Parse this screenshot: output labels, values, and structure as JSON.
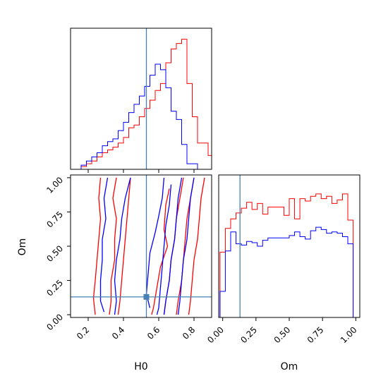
{
  "chart_data": {
    "type": "corner",
    "parameters": [
      "H0",
      "Om"
    ],
    "truth": {
      "H0": 0.53,
      "Om": 0.13
    },
    "truth_color": "#4682b4",
    "series": [
      {
        "color": "#ff0000"
      },
      {
        "color": "#0000ff"
      }
    ],
    "panels": [
      {
        "id": "hist-H0",
        "type": "histogram",
        "xlim": [
          0.1,
          0.9
        ],
        "ylim": [
          0,
          1.02
        ],
        "show_y_ticks": false,
        "bin_edges": [
          0.1,
          0.13,
          0.16,
          0.19,
          0.22,
          0.25,
          0.28,
          0.31,
          0.34,
          0.37,
          0.4,
          0.43,
          0.46,
          0.49,
          0.52,
          0.55,
          0.58,
          0.61,
          0.64,
          0.67,
          0.7,
          0.73,
          0.76,
          0.79,
          0.82,
          0.85,
          0.88,
          0.9
        ],
        "series_values": [
          [
            0.0,
            0.0,
            0.02,
            0.04,
            0.06,
            0.09,
            0.12,
            0.14,
            0.16,
            0.19,
            0.23,
            0.3,
            0.32,
            0.38,
            0.44,
            0.5,
            0.57,
            0.62,
            0.77,
            0.87,
            0.91,
            0.94,
            0.62,
            0.38,
            0.19,
            0.19,
            0.1
          ],
          [
            0.0,
            0.0,
            0.03,
            0.06,
            0.09,
            0.12,
            0.17,
            0.2,
            0.22,
            0.28,
            0.34,
            0.41,
            0.47,
            0.53,
            0.6,
            0.68,
            0.76,
            0.72,
            0.59,
            0.42,
            0.36,
            0.18,
            0.04,
            0.04,
            0.0,
            0.0,
            0.0
          ]
        ]
      },
      {
        "id": "contour-H0-Om",
        "type": "contour",
        "xlim": [
          0.1,
          0.9
        ],
        "ylim": [
          -0.02,
          1.02
        ],
        "x_ticks": [
          "0.2",
          "0.4",
          "0.6",
          "0.8"
        ],
        "x_tick_values": [
          0.2,
          0.4,
          0.6,
          0.8
        ],
        "y_ticks": [
          "0.00",
          "0.25",
          "0.50",
          "0.75",
          "1.00"
        ],
        "y_tick_values": [
          0.0,
          0.25,
          0.5,
          0.75,
          1.0
        ],
        "xlabel": "H0",
        "ylabel": "Om",
        "contours": [
          {
            "series": 0,
            "points": [
              [
                0.27,
                1.0
              ],
              [
                0.26,
                0.85
              ],
              [
                0.27,
                0.7
              ],
              [
                0.26,
                0.55
              ],
              [
                0.25,
                0.4
              ],
              [
                0.24,
                0.25
              ],
              [
                0.23,
                0.12
              ],
              [
                0.24,
                0.0
              ]
            ]
          },
          {
            "series": 0,
            "points": [
              [
                0.36,
                1.0
              ],
              [
                0.34,
                0.85
              ],
              [
                0.36,
                0.7
              ],
              [
                0.35,
                0.55
              ],
              [
                0.35,
                0.4
              ],
              [
                0.33,
                0.25
              ],
              [
                0.33,
                0.1
              ],
              [
                0.32,
                0.0
              ]
            ]
          },
          {
            "series": 0,
            "points": [
              [
                0.44,
                1.0
              ],
              [
                0.43,
                0.85
              ],
              [
                0.42,
                0.7
              ],
              [
                0.41,
                0.55
              ],
              [
                0.4,
                0.4
              ],
              [
                0.39,
                0.25
              ],
              [
                0.38,
                0.1
              ],
              [
                0.37,
                0.0
              ]
            ]
          },
          {
            "series": 0,
            "points": [
              [
                0.66,
                0.92
              ],
              [
                0.64,
                0.8
              ],
              [
                0.63,
                0.62
              ],
              [
                0.65,
                0.5
              ],
              [
                0.61,
                0.35
              ],
              [
                0.59,
                0.2
              ],
              [
                0.57,
                0.05
              ],
              [
                0.56,
                0.0
              ]
            ]
          },
          {
            "series": 0,
            "points": [
              [
                0.74,
                1.0
              ],
              [
                0.72,
                0.85
              ],
              [
                0.7,
                0.7
              ],
              [
                0.69,
                0.55
              ],
              [
                0.67,
                0.4
              ],
              [
                0.66,
                0.25
              ],
              [
                0.64,
                0.1
              ],
              [
                0.63,
                0.0
              ]
            ]
          },
          {
            "series": 0,
            "points": [
              [
                0.8,
                1.0
              ],
              [
                0.78,
                0.85
              ],
              [
                0.76,
                0.7
              ],
              [
                0.75,
                0.55
              ],
              [
                0.74,
                0.4
              ],
              [
                0.73,
                0.25
              ],
              [
                0.71,
                0.1
              ],
              [
                0.7,
                0.0
              ]
            ]
          },
          {
            "series": 0,
            "points": [
              [
                0.86,
                1.0
              ],
              [
                0.84,
                0.85
              ],
              [
                0.83,
                0.7
              ],
              [
                0.82,
                0.55
              ],
              [
                0.8,
                0.4
              ],
              [
                0.79,
                0.25
              ],
              [
                0.78,
                0.1
              ],
              [
                0.77,
                0.0
              ]
            ]
          },
          {
            "series": 1,
            "points": [
              [
                0.31,
                1.0
              ],
              [
                0.29,
                0.85
              ],
              [
                0.3,
                0.7
              ],
              [
                0.28,
                0.55
              ],
              [
                0.28,
                0.4
              ],
              [
                0.27,
                0.25
              ],
              [
                0.27,
                0.1
              ],
              [
                0.29,
                0.02
              ]
            ]
          },
          {
            "series": 1,
            "points": [
              [
                0.44,
                1.0
              ],
              [
                0.41,
                0.85
              ],
              [
                0.39,
                0.7
              ],
              [
                0.38,
                0.55
              ],
              [
                0.36,
                0.4
              ],
              [
                0.35,
                0.25
              ],
              [
                0.36,
                0.1
              ],
              [
                0.35,
                0.0
              ]
            ]
          },
          {
            "series": 1,
            "points": [
              [
                0.63,
                1.0
              ],
              [
                0.62,
                0.85
              ],
              [
                0.6,
                0.72
              ],
              [
                0.58,
                0.6
              ],
              [
                0.55,
                0.45
              ],
              [
                0.54,
                0.3
              ],
              [
                0.53,
                0.15
              ],
              [
                0.55,
                0.05
              ]
            ]
          },
          {
            "series": 1,
            "points": [
              [
                0.67,
                0.95
              ],
              [
                0.66,
                0.8
              ],
              [
                0.64,
                0.65
              ],
              [
                0.63,
                0.5
              ],
              [
                0.62,
                0.35
              ],
              [
                0.61,
                0.2
              ],
              [
                0.6,
                0.05
              ],
              [
                0.59,
                0.0
              ]
            ]
          },
          {
            "series": 1,
            "points": [
              [
                0.73,
                1.0
              ],
              [
                0.71,
                0.85
              ],
              [
                0.7,
                0.7
              ],
              [
                0.69,
                0.55
              ],
              [
                0.67,
                0.4
              ],
              [
                0.66,
                0.25
              ],
              [
                0.64,
                0.1
              ],
              [
                0.63,
                0.0
              ]
            ]
          },
          {
            "series": 1,
            "points": [
              [
                0.8,
                1.0
              ],
              [
                0.78,
                0.85
              ],
              [
                0.77,
                0.7
              ],
              [
                0.76,
                0.55
              ],
              [
                0.74,
                0.4
              ],
              [
                0.73,
                0.25
              ],
              [
                0.72,
                0.1
              ],
              [
                0.71,
                0.0
              ]
            ]
          }
        ],
        "truth_marker": true
      },
      {
        "id": "hist-Om",
        "type": "histogram",
        "xlim": [
          -0.03,
          1.03
        ],
        "ylim": [
          0,
          1.2
        ],
        "show_y_ticks": false,
        "x_ticks": [
          "0.00",
          "0.25",
          "0.50",
          "0.75",
          "1.00"
        ],
        "x_tick_values": [
          0.0,
          0.25,
          0.5,
          0.75,
          1.0
        ],
        "xlabel": "Om",
        "bin_edges": [
          -0.02,
          0.02,
          0.06,
          0.1,
          0.14,
          0.18,
          0.22,
          0.26,
          0.3,
          0.34,
          0.38,
          0.42,
          0.46,
          0.5,
          0.54,
          0.58,
          0.62,
          0.66,
          0.7,
          0.74,
          0.78,
          0.82,
          0.86,
          0.9,
          0.94,
          0.98,
          1.02
        ],
        "series_values": [
          [
            0.55,
            0.75,
            0.83,
            0.88,
            0.92,
            0.97,
            0.91,
            0.96,
            0.87,
            0.93,
            0.93,
            0.93,
            0.86,
            1.0,
            0.83,
            1.0,
            0.98,
            1.02,
            1.04,
            1.0,
            1.02,
            0.96,
            0.99,
            1.04,
            0.82,
            0.0
          ],
          [
            0.22,
            0.56,
            0.72,
            0.62,
            0.61,
            0.64,
            0.63,
            0.6,
            0.65,
            0.67,
            0.67,
            0.67,
            0.67,
            0.69,
            0.72,
            0.68,
            0.66,
            0.73,
            0.76,
            0.74,
            0.71,
            0.72,
            0.71,
            0.68,
            0.62,
            0.0
          ]
        ]
      }
    ]
  }
}
